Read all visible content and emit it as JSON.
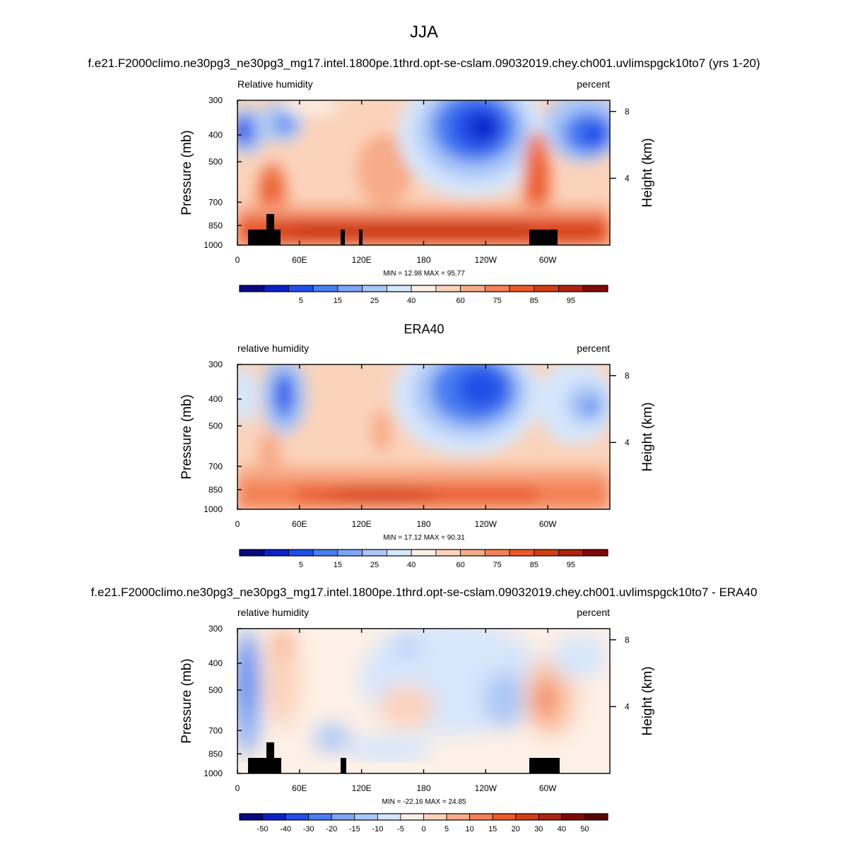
{
  "figure": {
    "main_title": "JJA",
    "panel1_title": "f.e21.F2000climo.ne30pg3_ne30pg3_mg17.intel.1800pe.1thrd.opt-se-cslam.09032019.chey.ch001.uvlimspgck10to7 (yrs 1-20)",
    "panel2_title": "ERA40",
    "panel3_title": "f.e21.F2000climo.ne30pg3_ne30pg3_mg17.intel.1800pe.1thrd.opt-se-cslam.09032019.chey.ch001.uvlimspgck10to7 - ERA40"
  },
  "chart_data": [
    {
      "type": "heatmap",
      "left_label": "Relative humidity",
      "right_label": "percent",
      "ylabel": "Pressure (mb)",
      "y2label": "Height (km)",
      "x_ticks": [
        "0",
        "60E",
        "120E",
        "180",
        "120W",
        "60W"
      ],
      "x_tick_lon": [
        0,
        60,
        120,
        180,
        240,
        300
      ],
      "xlim": [
        0,
        360
      ],
      "y_ticks": [
        "300",
        "400",
        "500",
        "700",
        "850",
        "1000"
      ],
      "y_tick_p": [
        300,
        400,
        500,
        700,
        850,
        1000
      ],
      "ylim": [
        1000,
        300
      ],
      "y_scale": "log",
      "y2_ticks": [
        "8",
        "4"
      ],
      "y2_tick_km": [
        8,
        4
      ],
      "stats": "MIN =  12.98  MAX =  95.77",
      "min": 12.98,
      "max": 95.77,
      "colorbar_labels": [
        "5",
        "15",
        "25",
        "40",
        "60",
        "75",
        "85",
        "95"
      ],
      "colors": [
        "#0a0a80",
        "#0d20c8",
        "#2050e8",
        "#4a7ef0",
        "#7ea6f4",
        "#abc7f7",
        "#d6e6fb",
        "#fdf0e6",
        "#fbd3bb",
        "#f7ab88",
        "#f38257",
        "#ea5a2a",
        "#d13e16",
        "#ad2410",
        "#7e0b07"
      ]
    },
    {
      "type": "heatmap",
      "left_label": "relative humidity",
      "right_label": "percent",
      "ylabel": "Pressure (mb)",
      "y2label": "Height (km)",
      "x_ticks": [
        "0",
        "60E",
        "120E",
        "180",
        "120W",
        "60W"
      ],
      "x_tick_lon": [
        0,
        60,
        120,
        180,
        240,
        300
      ],
      "xlim": [
        0,
        360
      ],
      "y_ticks": [
        "300",
        "400",
        "500",
        "700",
        "850",
        "1000"
      ],
      "y_tick_p": [
        300,
        400,
        500,
        700,
        850,
        1000
      ],
      "ylim": [
        1000,
        300
      ],
      "y_scale": "log",
      "y2_ticks": [
        "8",
        "4"
      ],
      "y2_tick_km": [
        8,
        4
      ],
      "stats": "MIN =  17.12  MAX =  90.31",
      "min": 17.12,
      "max": 90.31,
      "colorbar_labels": [
        "5",
        "15",
        "25",
        "40",
        "60",
        "75",
        "85",
        "95"
      ],
      "colors": [
        "#0a0a80",
        "#0d20c8",
        "#2050e8",
        "#4a7ef0",
        "#7ea6f4",
        "#abc7f7",
        "#d6e6fb",
        "#fdf0e6",
        "#fbd3bb",
        "#f7ab88",
        "#f38257",
        "#ea5a2a",
        "#d13e16",
        "#ad2410",
        "#7e0b07"
      ]
    },
    {
      "type": "heatmap",
      "left_label": "relative humidity",
      "right_label": "percent",
      "ylabel": "Pressure (mb)",
      "y2label": "Height (km)",
      "x_ticks": [
        "0",
        "60E",
        "120E",
        "180",
        "120W",
        "60W"
      ],
      "x_tick_lon": [
        0,
        60,
        120,
        180,
        240,
        300
      ],
      "xlim": [
        0,
        360
      ],
      "y_ticks": [
        "300",
        "400",
        "500",
        "700",
        "850",
        "1000"
      ],
      "y_tick_p": [
        300,
        400,
        500,
        700,
        850,
        1000
      ],
      "ylim": [
        1000,
        300
      ],
      "y_scale": "log",
      "y2_ticks": [
        "8",
        "4"
      ],
      "y2_tick_km": [
        8,
        4
      ],
      "stats": "MIN = -22.16  MAX =  24.85",
      "min": -22.16,
      "max": 24.85,
      "colorbar_labels": [
        "-50",
        "-40",
        "-30",
        "-20",
        "-15",
        "-10",
        "-5",
        "0",
        "5",
        "10",
        "15",
        "20",
        "30",
        "40",
        "50"
      ],
      "colors": [
        "#0a0a80",
        "#0d20c8",
        "#2050e8",
        "#4a7ef0",
        "#7ea6f4",
        "#abc7f7",
        "#d6e6fb",
        "#fdf0e6",
        "#fbd3bb",
        "#f7ab88",
        "#f38257",
        "#ea5a2a",
        "#d13e16",
        "#ad2410",
        "#7e0b07",
        "#5a0504"
      ]
    }
  ]
}
